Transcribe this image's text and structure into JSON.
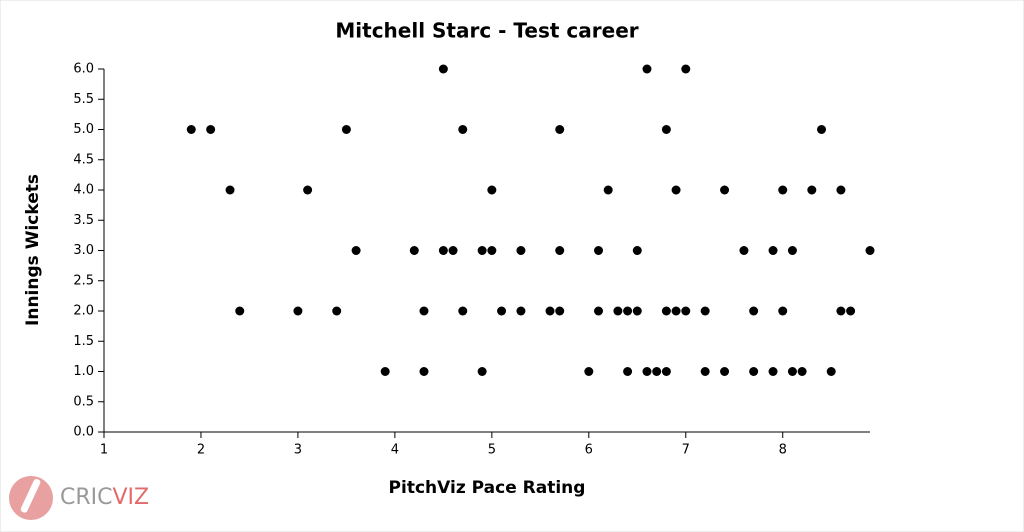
{
  "chart_data": {
    "type": "scatter",
    "title": "Mitchell Starc - Test career",
    "x_label": "PitchViz Pace Rating",
    "y_label": "Innings Wickets",
    "color": "#000000",
    "x": [
      1.9,
      2.1,
      3.5,
      4.7,
      5.7,
      6.8,
      8.4,
      4.5,
      6.6,
      7.0,
      2.3,
      3.1,
      5.0,
      6.2,
      6.9,
      7.4,
      8.0,
      8.3,
      8.6,
      3.6,
      4.2,
      4.5,
      4.6,
      4.9,
      5.0,
      5.3,
      5.7,
      6.1,
      6.5,
      7.6,
      7.9,
      8.1,
      8.9,
      2.4,
      3.0,
      3.4,
      4.3,
      4.7,
      5.1,
      5.3,
      5.6,
      5.7,
      6.1,
      6.3,
      6.4,
      6.5,
      6.8,
      6.9,
      7.0,
      7.2,
      7.7,
      8.0,
      8.6,
      8.7,
      3.9,
      4.3,
      4.9,
      6.0,
      6.4,
      6.6,
      6.7,
      6.8,
      7.2,
      7.4,
      7.7,
      7.9,
      8.1,
      8.2,
      8.5
    ],
    "y": [
      5,
      5,
      5,
      5,
      5,
      5,
      5,
      6,
      6,
      6,
      4,
      4,
      4,
      4,
      4,
      4,
      4,
      4,
      4,
      3,
      3,
      3,
      3,
      3,
      3,
      3,
      3,
      3,
      3,
      3,
      3,
      3,
      3,
      2,
      2,
      2,
      2,
      2,
      2,
      2,
      2,
      2,
      2,
      2,
      2,
      2,
      2,
      2,
      2,
      2,
      2,
      2,
      2,
      2,
      1,
      1,
      1,
      1,
      1,
      1,
      1,
      1,
      1,
      1,
      1,
      1,
      1,
      1,
      1
    ],
    "xlim": [
      1,
      8.9
    ],
    "xticks": [
      1,
      2,
      3,
      4,
      5,
      6,
      7,
      8
    ],
    "ylim": [
      0,
      6
    ],
    "yticks": [
      {
        "value": 0,
        "label": "0.0"
      },
      {
        "value": 0.5,
        "label": "0.5"
      },
      {
        "value": 1,
        "label": "1.0"
      },
      {
        "value": 1.5,
        "label": "1.5"
      },
      {
        "value": 2,
        "label": "2.0"
      },
      {
        "value": 2.5,
        "label": "2.5"
      },
      {
        "value": 3,
        "label": "3.0"
      },
      {
        "value": 3.5,
        "label": "3.5"
      },
      {
        "value": 4,
        "label": "4.0"
      },
      {
        "value": 4.5,
        "label": "4.5"
      },
      {
        "value": 5,
        "label": "5.0"
      },
      {
        "value": 5.5,
        "label": "5.5"
      },
      {
        "value": 6,
        "label": "6.0"
      }
    ]
  },
  "logo": {
    "part1": "CRIC",
    "part2": "VIZ"
  }
}
